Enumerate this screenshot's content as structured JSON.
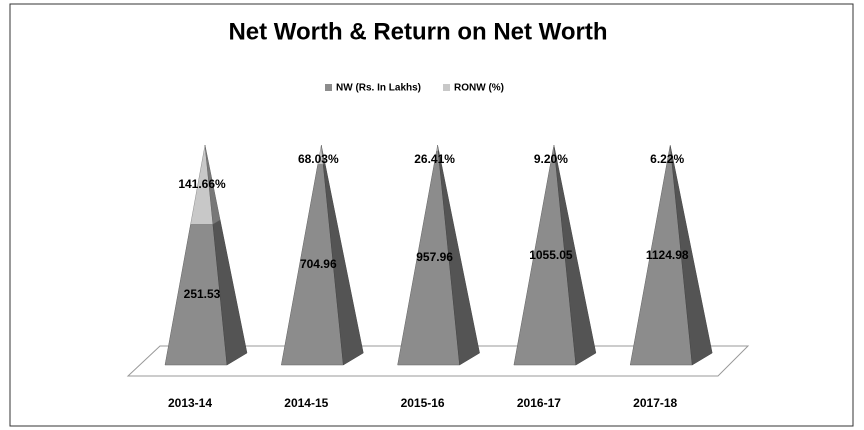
{
  "chart_data": {
    "type": "pyramid",
    "title": "Net Worth & Return on Net Worth",
    "categories": [
      "2013-14",
      "2014-15",
      "2015-16",
      "2016-17",
      "2017-18"
    ],
    "series": [
      {
        "name": "NW (Rs. In Lakhs)",
        "color": "#8c8c8c",
        "values": [
          251.53,
          704.96,
          957.96,
          1055.05,
          1124.98
        ]
      },
      {
        "name": "RONW (%)",
        "color": "#c8c8c8",
        "values": [
          141.66,
          68.03,
          26.41,
          9.2,
          6.22
        ],
        "value_labels": [
          "141.66%",
          "68.03%",
          "26.41%",
          "9.20%",
          "6.22%"
        ]
      }
    ]
  }
}
